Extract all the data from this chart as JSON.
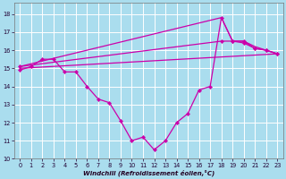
{
  "xlabel": "Windchill (Refroidissement éolien,°C)",
  "background_color": "#aaddee",
  "grid_color": "#ffffff",
  "line_color": "#cc00aa",
  "xlim": [
    -0.5,
    23.5
  ],
  "ylim": [
    10,
    18.6
  ],
  "yticks": [
    10,
    11,
    12,
    13,
    14,
    15,
    16,
    17,
    18
  ],
  "xticks": [
    0,
    1,
    2,
    3,
    4,
    5,
    6,
    7,
    8,
    9,
    10,
    11,
    12,
    13,
    14,
    15,
    16,
    17,
    18,
    19,
    20,
    21,
    22,
    23
  ],
  "curve_x": [
    0,
    1,
    2,
    3,
    4,
    5,
    6,
    7,
    8,
    9,
    10,
    11,
    12,
    13,
    14,
    15,
    16,
    17,
    18,
    19,
    20,
    21,
    22,
    23
  ],
  "curve_y": [
    14.9,
    15.1,
    15.5,
    15.5,
    14.8,
    14.8,
    14.0,
    13.3,
    13.1,
    12.1,
    11.0,
    11.2,
    10.5,
    11.0,
    12.0,
    12.5,
    13.8,
    14.0,
    17.8,
    16.5,
    16.5,
    16.1,
    16.0,
    15.8
  ],
  "line1_x": [
    0,
    23
  ],
  "line1_y": [
    15.0,
    15.8
  ],
  "line2_x": [
    0,
    18,
    19,
    20,
    21,
    22,
    23
  ],
  "line2_y": [
    15.1,
    16.5,
    16.5,
    16.4,
    16.1,
    16.0,
    15.8
  ],
  "line3_x": [
    0,
    18,
    19,
    20,
    21,
    22,
    23
  ],
  "line3_y": [
    15.1,
    17.8,
    16.5,
    16.5,
    16.2,
    16.0,
    15.8
  ]
}
